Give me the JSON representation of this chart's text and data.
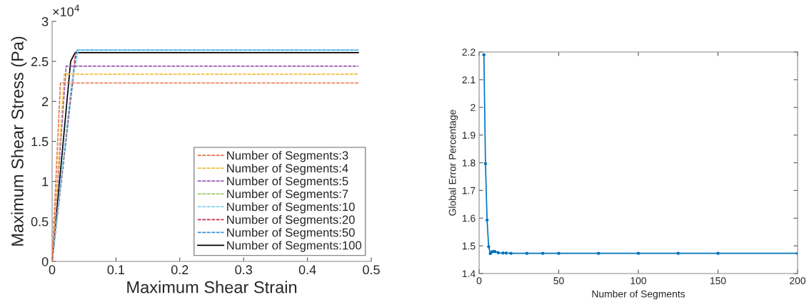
{
  "chart_data": [
    {
      "type": "line",
      "xlabel": "Maximum Shear Strain",
      "ylabel": "Maximum Shear Stress (Pa)",
      "annotations": [
        "×10$^{4}$"
      ],
      "xlim": [
        0,
        0.5
      ],
      "ylim": [
        0,
        3
      ],
      "xticks": [
        0,
        0.1,
        0.2,
        0.3,
        0.4,
        0.5
      ],
      "yticks": [
        0,
        0.5,
        1,
        1.5,
        2,
        2.5,
        3
      ],
      "grid": false,
      "legend": "bottom right",
      "line_style": "dashed",
      "series": [
        {
          "name": "Number of Segments:3",
          "color": "#e8744a",
          "x": [
            0,
            0.013,
            0.48
          ],
          "values": [
            0,
            2.23,
            2.23
          ]
        },
        {
          "name": "Number of Segments:4",
          "color": "#f2bf3f",
          "x": [
            0,
            0.019,
            0.48
          ],
          "values": [
            0,
            2.34,
            2.34
          ]
        },
        {
          "name": "Number of Segments:5",
          "color": "#9b59b6",
          "x": [
            0,
            0.022,
            0.48
          ],
          "values": [
            0,
            2.44,
            2.44
          ]
        },
        {
          "name": "Number of Segments:7",
          "color": "#8cc152",
          "x": [
            null
          ],
          "values": [
            null
          ]
        },
        {
          "name": "Number of Segments:10",
          "color": "#6fcbeb",
          "x": [
            0,
            0.03,
            0.041,
            0.48
          ],
          "values": [
            0,
            2.2,
            2.64,
            2.64
          ]
        },
        {
          "name": "Number of Segments:20",
          "color": "#c0334f",
          "x": [
            0,
            0.037
          ],
          "values": [
            0,
            2.62
          ]
        },
        {
          "name": "Number of Segments:50",
          "color": "#3a8fd6",
          "x": [
            0,
            0.038,
            0.48
          ],
          "values": [
            0,
            2.64,
            2.64
          ]
        },
        {
          "name": "Number of Segments:100",
          "color": "#000000",
          "line_style": "solid",
          "x": [
            0,
            0.029,
            0.036,
            0.48
          ],
          "values": [
            0,
            2.5,
            2.61,
            2.61
          ]
        }
      ]
    },
    {
      "type": "line",
      "xlabel": "Number of Segments",
      "ylabel": "Global Error Percentage",
      "xlim": [
        0,
        200
      ],
      "ylim": [
        1.4,
        2.2
      ],
      "xticks": [
        0,
        50,
        100,
        150,
        200
      ],
      "yticks": [
        1.4,
        1.5,
        1.6,
        1.7,
        1.8,
        1.9,
        2,
        2.1,
        2.2
      ],
      "grid": false,
      "marker": "circle",
      "line_style": "solid",
      "series": [
        {
          "color": "#0072bd",
          "x": [
            3,
            4,
            5,
            6,
            7,
            8,
            9,
            10,
            12,
            15,
            17,
            20,
            30,
            40,
            50,
            75,
            100,
            125,
            150,
            200
          ],
          "values": [
            2.19,
            1.797,
            1.593,
            1.497,
            1.472,
            1.478,
            1.48,
            1.479,
            1.475,
            1.474,
            1.474,
            1.473,
            1.473,
            1.473,
            1.473,
            1.473,
            1.473,
            1.473,
            1.473,
            1.473
          ]
        }
      ]
    }
  ]
}
